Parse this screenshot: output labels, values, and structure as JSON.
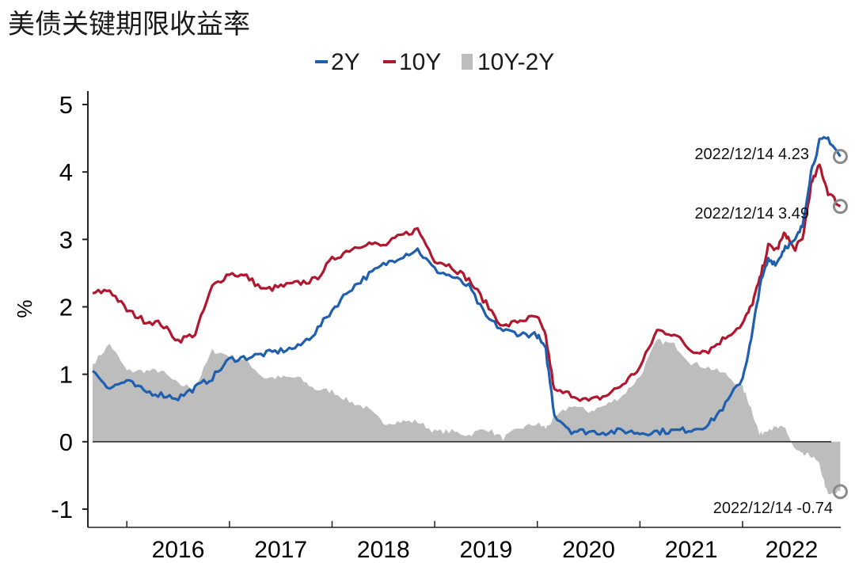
{
  "chart_data": {
    "type": "line",
    "title": "美债关键期限收益率",
    "ylabel": "%",
    "xlabel": "",
    "ylim": [
      -1.2,
      5.2
    ],
    "y_ticks": [
      5,
      4,
      3,
      2,
      1,
      0,
      -1
    ],
    "x_tick_labels": [
      "2016",
      "2017",
      "2018",
      "2019",
      "2020",
      "2021",
      "2022"
    ],
    "x_range": [
      "2015-09",
      "2022-12"
    ],
    "legend_placement": "top-center",
    "grid": false,
    "colors": {
      "2Y": "#1f5fae",
      "10Y": "#b0182f",
      "spread": "#bdbdbd"
    },
    "legend": [
      {
        "label": "2Y",
        "color": "#1f5fae",
        "kind": "line"
      },
      {
        "label": "10Y",
        "color": "#b0182f",
        "kind": "line"
      },
      {
        "label": "10Y-2Y",
        "color": "#bdbdbd",
        "kind": "area"
      }
    ],
    "x": [
      "2015-09",
      "2015-11",
      "2016-01",
      "2016-03",
      "2016-05",
      "2016-07",
      "2016-09",
      "2016-11",
      "2017-01",
      "2017-03",
      "2017-05",
      "2017-07",
      "2017-09",
      "2017-11",
      "2018-01",
      "2018-03",
      "2018-05",
      "2018-07",
      "2018-09",
      "2018-11",
      "2019-01",
      "2019-03",
      "2019-05",
      "2019-07",
      "2019-09",
      "2019-11",
      "2020-01",
      "2020-02",
      "2020-03",
      "2020-05",
      "2020-07",
      "2020-09",
      "2020-11",
      "2021-01",
      "2021-03",
      "2021-05",
      "2021-07",
      "2021-09",
      "2021-11",
      "2022-01",
      "2022-02",
      "2022-03",
      "2022-04",
      "2022-05",
      "2022-06",
      "2022-07",
      "2022-08",
      "2022-09",
      "2022-10",
      "2022-11",
      "2022-12-14"
    ],
    "series": [
      {
        "name": "2Y",
        "values": [
          1.05,
          0.8,
          0.9,
          0.75,
          0.7,
          0.65,
          0.8,
          0.95,
          1.22,
          1.25,
          1.3,
          1.35,
          1.4,
          1.62,
          1.95,
          2.25,
          2.45,
          2.62,
          2.75,
          2.85,
          2.55,
          2.45,
          2.3,
          1.85,
          1.65,
          1.6,
          1.58,
          1.35,
          0.4,
          0.16,
          0.15,
          0.14,
          0.16,
          0.13,
          0.15,
          0.16,
          0.18,
          0.25,
          0.55,
          0.95,
          1.5,
          2.3,
          2.7,
          2.65,
          2.9,
          2.95,
          3.2,
          4.0,
          4.45,
          4.5,
          4.23
        ]
      },
      {
        "name": "10Y",
        "values": [
          2.2,
          2.25,
          1.95,
          1.8,
          1.75,
          1.5,
          1.6,
          2.3,
          2.5,
          2.45,
          2.25,
          2.3,
          2.35,
          2.4,
          2.7,
          2.85,
          2.95,
          2.9,
          3.05,
          3.15,
          2.7,
          2.6,
          2.4,
          2.05,
          1.7,
          1.8,
          1.85,
          1.55,
          0.75,
          0.7,
          0.6,
          0.68,
          0.85,
          1.1,
          1.65,
          1.6,
          1.35,
          1.35,
          1.55,
          1.75,
          2.0,
          2.4,
          2.9,
          2.85,
          3.1,
          2.85,
          3.0,
          3.8,
          4.1,
          3.7,
          3.49
        ]
      },
      {
        "name": "10Y-2Y",
        "values": [
          1.15,
          1.45,
          1.05,
          1.05,
          1.05,
          0.85,
          0.8,
          1.35,
          1.28,
          1.2,
          0.95,
          0.95,
          0.95,
          0.78,
          0.75,
          0.6,
          0.5,
          0.28,
          0.3,
          0.3,
          0.15,
          0.15,
          0.1,
          0.2,
          0.05,
          0.2,
          0.27,
          0.2,
          0.35,
          0.54,
          0.45,
          0.54,
          0.69,
          0.97,
          1.5,
          1.44,
          1.17,
          1.1,
          1.0,
          0.8,
          0.5,
          0.1,
          0.2,
          0.2,
          0.2,
          -0.1,
          -0.2,
          -0.2,
          -0.35,
          -0.8,
          -0.74
        ]
      }
    ],
    "annotations": [
      {
        "text": "2022/12/14 4.23",
        "x": "2022-12-14",
        "y": 4.23
      },
      {
        "text": "2022/12/14 3.49",
        "x": "2022-12-14",
        "y": 3.49
      },
      {
        "text": "2022/12/14 -0.74",
        "x": "2022-12-14",
        "y": -0.74
      }
    ]
  }
}
